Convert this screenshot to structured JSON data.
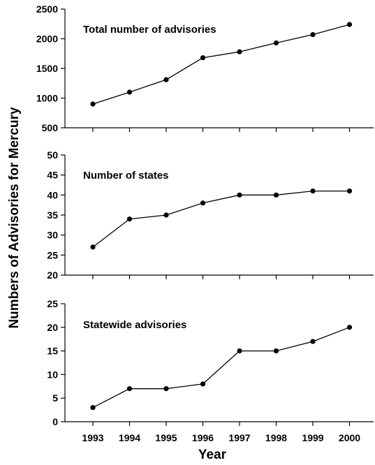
{
  "chart_data": {
    "type": "line",
    "xlabel": "Year",
    "ylabel": "Numbers of Advisories for Mercury",
    "x": [
      1993,
      1994,
      1995,
      1996,
      1997,
      1998,
      1999,
      2000
    ],
    "panels": [
      {
        "title": "Total number of advisories",
        "ylim": [
          500,
          2500
        ],
        "yticks": [
          500,
          1000,
          1500,
          2000,
          2500
        ],
        "values": [
          900,
          1100,
          1310,
          1680,
          1780,
          1930,
          2070,
          2240
        ]
      },
      {
        "title": "Number of states",
        "ylim": [
          20,
          50
        ],
        "yticks": [
          20,
          25,
          30,
          35,
          40,
          45,
          50
        ],
        "values": [
          27,
          34,
          35,
          38,
          40,
          40,
          41,
          41
        ]
      },
      {
        "title": "Statewide advisories",
        "ylim": [
          0,
          25
        ],
        "yticks": [
          0,
          5,
          10,
          15,
          20,
          25
        ],
        "values": [
          3,
          7,
          7,
          8,
          15,
          15,
          17,
          20
        ]
      }
    ],
    "grid": false,
    "marker": "circle",
    "line_color": "#000000",
    "marker_color": "#000000"
  }
}
